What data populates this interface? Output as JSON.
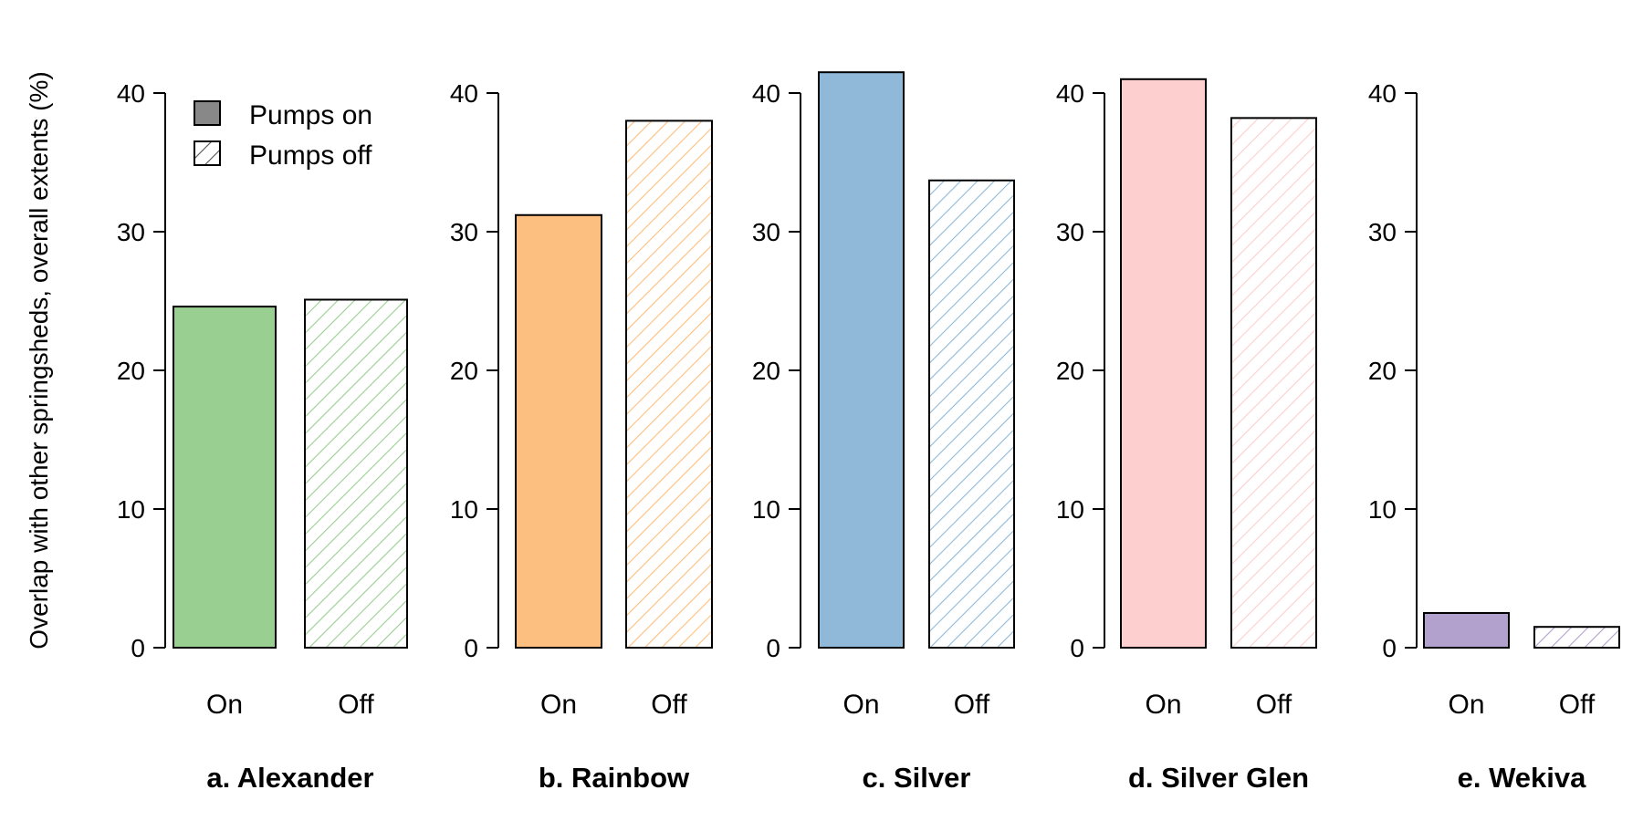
{
  "chart_data": {
    "type": "bar",
    "ylabel": "Overlap with other springsheds, overall extents (%)",
    "ylim": [
      0,
      40
    ],
    "yticks": [
      0,
      10,
      20,
      30,
      40
    ],
    "categories": [
      "On",
      "Off"
    ],
    "legend": {
      "placement": "top-left",
      "entries": [
        {
          "label": "Pumps on",
          "style": "solid"
        },
        {
          "label": "Pumps off",
          "style": "hatched"
        }
      ]
    },
    "panels": [
      {
        "title": "a. Alexander",
        "color": "#9ACF92",
        "values": [
          24.6,
          25.1
        ]
      },
      {
        "title": "b. Rainbow",
        "color": "#FDBF80",
        "values": [
          31.2,
          38.0
        ]
      },
      {
        "title": "c. Silver",
        "color": "#90B9D9",
        "values": [
          41.5,
          33.7
        ]
      },
      {
        "title": "d. Silver Glen",
        "color": "#FDCFCF",
        "values": [
          41.0,
          38.2
        ]
      },
      {
        "title": "e. Wekiva",
        "color": "#B3A1CD",
        "values": [
          2.5,
          1.5
        ]
      }
    ],
    "grid": false
  }
}
